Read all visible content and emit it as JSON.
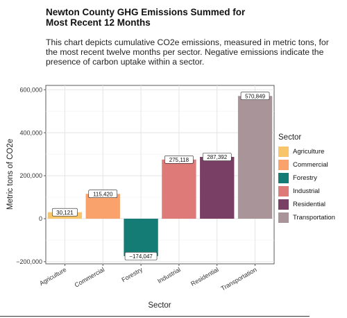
{
  "header": {
    "title": "Newton County GHG Emissions Summed for Most Recent 12 Months",
    "description": "This chart depicts cumulative CO2e emissions, measured in metric tons, for the most recent twelve months per sector. Negative emissions indicate the presence of carbon uptake within a sector."
  },
  "chart_data": {
    "type": "bar",
    "categories": [
      "Agriculture",
      "Commercial",
      "Forestry",
      "Industrial",
      "Residential",
      "Transportation"
    ],
    "values": [
      30121,
      115420,
      -174047,
      275118,
      287392,
      570849
    ],
    "data_labels": [
      "30,121",
      "115,420",
      "−174,047",
      "275,118",
      "287,392",
      "570,849"
    ],
    "colors": [
      "#F9C56A",
      "#F9A26B",
      "#157B75",
      "#DE7A78",
      "#7A3F64",
      "#A99499"
    ],
    "xlabel": "Sector",
    "ylabel": "Metric tons of CO2e",
    "ylim": [
      -210000,
      620000
    ],
    "yticks": [
      -200000,
      0,
      200000,
      400000,
      600000
    ],
    "ytick_labels": [
      "−200,000",
      "0",
      "200,000",
      "400,000",
      "600,000"
    ],
    "grid": true,
    "legend": {
      "title": "Sector",
      "position": "right",
      "entries": [
        "Agriculture",
        "Commercial",
        "Forestry",
        "Industrial",
        "Residential",
        "Transportation"
      ]
    }
  }
}
